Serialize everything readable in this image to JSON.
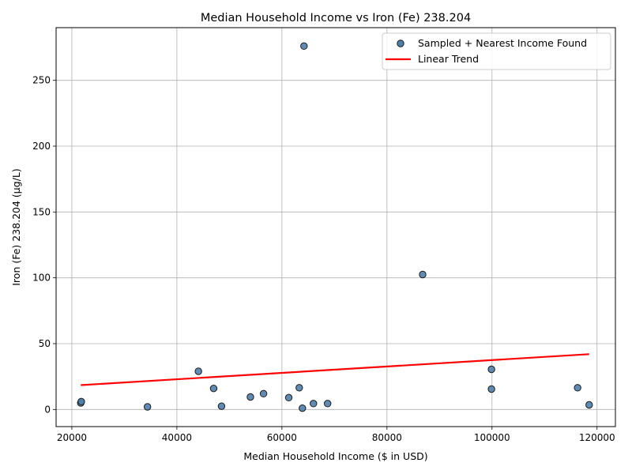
{
  "chart_data": {
    "type": "scatter",
    "title": "Median Household Income vs Iron (Fe) 238.204",
    "xlabel": "Median Household Income ($ in USD)",
    "ylabel": "Iron (Fe) 238.204 (µg/L)",
    "xlim": [
      17000,
      123500
    ],
    "ylim": [
      -13,
      290
    ],
    "xticks": [
      20000,
      40000,
      60000,
      80000,
      100000,
      120000
    ],
    "yticks": [
      0,
      50,
      100,
      150,
      200,
      250
    ],
    "grid": true,
    "legend_position": "top-right",
    "colors": {
      "point_fill": "#4f7fab",
      "point_edge": "#1a1a1a",
      "trend": "#ff0000",
      "grid": "#b0b0b0"
    },
    "series": [
      {
        "name": "Sampled + Nearest Income Found",
        "kind": "scatter",
        "points": [
          {
            "x": 21700,
            "y": 5.0
          },
          {
            "x": 21800,
            "y": 6.0
          },
          {
            "x": 34400,
            "y": 2.0
          },
          {
            "x": 44100,
            "y": 29.0
          },
          {
            "x": 47000,
            "y": 16.0
          },
          {
            "x": 48500,
            "y": 2.5
          },
          {
            "x": 54000,
            "y": 9.5
          },
          {
            "x": 56500,
            "y": 12.0
          },
          {
            "x": 61300,
            "y": 9.0
          },
          {
            "x": 63300,
            "y": 16.5
          },
          {
            "x": 63900,
            "y": 1.0
          },
          {
            "x": 64200,
            "y": 276.0
          },
          {
            "x": 66000,
            "y": 4.5
          },
          {
            "x": 68700,
            "y": 4.5
          },
          {
            "x": 86800,
            "y": 102.5
          },
          {
            "x": 99900,
            "y": 30.5
          },
          {
            "x": 99900,
            "y": 15.5
          },
          {
            "x": 116300,
            "y": 16.5
          },
          {
            "x": 118500,
            "y": 3.5
          }
        ]
      },
      {
        "name": "Linear Trend",
        "kind": "line",
        "points": [
          {
            "x": 21700,
            "y": 18.5
          },
          {
            "x": 118500,
            "y": 42.0
          }
        ]
      }
    ]
  }
}
